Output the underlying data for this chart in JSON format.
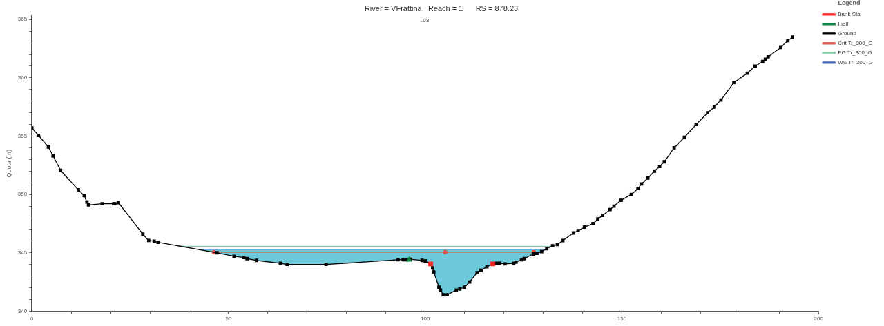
{
  "chart_data": {
    "type": "line",
    "title": "River = VFrattina   Reach = 1      RS = 878.23",
    "ylabel": "Quota (m)",
    "legend_title": "Legend",
    "legend": "top right",
    "xlim": [
      0,
      200
    ],
    "ylim": [
      340,
      365.3
    ],
    "xticks": [
      0,
      {
        "value": 10,
        "label": null
      },
      {
        "value": 20,
        "label": null
      },
      {
        "value": 30,
        "label": null
      },
      {
        "value": 40,
        "label": null
      },
      50,
      {
        "value": 60,
        "label": null
      },
      {
        "value": 70,
        "label": null
      },
      {
        "value": 80,
        "label": null
      },
      {
        "value": 90,
        "label": null
      },
      100,
      {
        "value": 110,
        "label": null
      },
      {
        "value": 120,
        "label": null
      },
      {
        "value": 130,
        "label": null
      },
      {
        "value": 140,
        "label": null
      },
      150,
      {
        "value": 160,
        "label": null
      },
      {
        "value": 170,
        "label": null
      },
      {
        "value": 180,
        "label": null
      },
      {
        "value": 190,
        "label": null
      },
      200
    ],
    "yticks": [
      340,
      {
        "value": 341,
        "label": null
      },
      {
        "value": 342,
        "label": null
      },
      {
        "value": 343,
        "label": null
      },
      {
        "value": 344,
        "label": null
      },
      345,
      {
        "value": 346,
        "label": null
      },
      {
        "value": 347,
        "label": null
      },
      {
        "value": 348,
        "label": null
      },
      {
        "value": 349,
        "label": null
      },
      350,
      {
        "value": 351,
        "label": null
      },
      {
        "value": 352,
        "label": null
      },
      {
        "value": 353,
        "label": null
      },
      {
        "value": 354,
        "label": null
      },
      355,
      {
        "value": 356,
        "label": null
      },
      {
        "value": 357,
        "label": null
      },
      {
        "value": 358,
        "label": null
      },
      {
        "value": 359,
        "label": null
      },
      360,
      {
        "value": 361,
        "label": null
      },
      {
        "value": 362,
        "label": null
      },
      {
        "value": 363,
        "label": null
      },
      {
        "value": 364,
        "label": null
      },
      365
    ],
    "grid": false,
    "annotations": [
      ".03"
    ],
    "series": [
      {
        "name": "EG Tr_300_G",
        "color": "#88ccaa",
        "marker": "none",
        "x": [
          37.5,
          132
        ],
        "values": [
          345.55,
          345.55
        ]
      },
      {
        "name": "WS Tr_300_G",
        "color": "#4a6cb8",
        "type": "area",
        "marker": "none",
        "x": [
          41.4,
          130.4
        ],
        "values": [
          345.3,
          345.3
        ]
      },
      {
        "name": "Crit Tr_300_G",
        "color": "#e05050",
        "marker": "circle",
        "x": [
          46.3,
          105.1,
          127.6
        ],
        "values": [
          345.05,
          345.05,
          345.05
        ]
      },
      {
        "name": "Ground",
        "color": "#000000",
        "marker": "square",
        "x": [
          0,
          1.7,
          4.2,
          5.4,
          7.3,
          11.8,
          13.3,
          14.0,
          14.4,
          17.9,
          20.8,
          21.1,
          22.0,
          28.2,
          29.7,
          31.1,
          32.1,
          47.1,
          51.4,
          53.9,
          54.7,
          57.1,
          63.2,
          64.9,
          74.8,
          93.1,
          94.4,
          95.3,
          96.3,
          99.2,
          100.0,
          101.4,
          101.9,
          102.2,
          103.5,
          103.9,
          104.6,
          105.6,
          107.9,
          108.8,
          110.0,
          111.3,
          113.2,
          114.2,
          115.7,
          117.2,
          118.2,
          118.9,
          120.3,
          122.5,
          123.1,
          124.5,
          125.2,
          127.5,
          128.4,
          129.6,
          130.9,
          132.4,
          133.6,
          135.0,
          137.7,
          138.9,
          140.5,
          142.7,
          143.9,
          145.1,
          147.0,
          148.0,
          149.8,
          152.4,
          154.1,
          155.0,
          156.6,
          158.3,
          159.6,
          160.8,
          163.3,
          165.9,
          168.9,
          171.8,
          173.5,
          175.2,
          178.5,
          181.9,
          183.9,
          185.8,
          186.5,
          187.2,
          190.4,
          192.2,
          193.4
        ],
        "values": [
          355.7,
          355.06,
          354.06,
          353.3,
          352.06,
          350.4,
          349.9,
          349.35,
          349.1,
          349.2,
          349.2,
          349.2,
          349.3,
          346.6,
          346.06,
          346.0,
          345.9,
          345.0,
          344.7,
          344.6,
          344.5,
          344.35,
          344.1,
          344.0,
          344.0,
          344.4,
          344.4,
          344.4,
          344.45,
          344.35,
          344.3,
          344.05,
          343.7,
          343.35,
          342.05,
          341.8,
          341.4,
          341.4,
          341.8,
          341.9,
          342.05,
          342.5,
          343.3,
          343.5,
          343.8,
          344.05,
          344.1,
          344.1,
          344.05,
          344.1,
          344.2,
          344.4,
          344.5,
          344.9,
          344.95,
          345.1,
          345.35,
          345.6,
          345.7,
          346.05,
          346.7,
          346.9,
          347.2,
          347.5,
          347.9,
          348.2,
          348.7,
          349.0,
          349.5,
          350.0,
          350.5,
          350.9,
          351.4,
          352.0,
          352.4,
          352.8,
          354.0,
          354.9,
          356.0,
          357.0,
          357.5,
          358.1,
          359.6,
          360.4,
          361.0,
          361.4,
          361.6,
          361.8,
          362.6,
          363.2,
          363.5
        ]
      },
      {
        "name": "Ineff",
        "type": "scatter",
        "color": "#108040",
        "marker": "triangle",
        "x": [
          95.9
        ],
        "values": [
          344.4
        ]
      },
      {
        "name": "Bank Sta",
        "type": "scatter",
        "color": "#ff2020",
        "marker": "square",
        "x": [
          101.4,
          117.2
        ],
        "values": [
          344.05,
          344.05
        ]
      }
    ]
  }
}
